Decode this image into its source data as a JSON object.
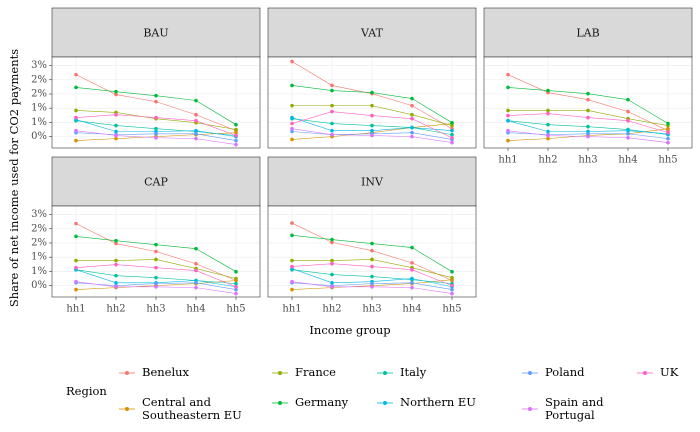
{
  "chart_data": {
    "type": "line",
    "y_label": "Share of net income used for CO2 payments",
    "x_label": "Income group",
    "legend_title": "Region",
    "categories": [
      "hh1",
      "hh2",
      "hh3",
      "hh4",
      "hh5"
    ],
    "ylim": [
      -0.4,
      2.8
    ],
    "yticks": [
      {
        "value": 0,
        "label": "0%"
      },
      {
        "value": 0.5,
        "label": "1%"
      },
      {
        "value": 1,
        "label": "1%"
      },
      {
        "value": 1.5,
        "label": "2%"
      },
      {
        "value": 2,
        "label": "2%"
      },
      {
        "value": 2.5,
        "label": "3%"
      }
    ],
    "grid": true,
    "series": [
      {
        "name": "Benelux",
        "color": "#F8766D"
      },
      {
        "name": "Central and Southeastern EU",
        "color": "#D39200"
      },
      {
        "name": "France",
        "color": "#93AA00"
      },
      {
        "name": "Germany",
        "color": "#00BA38"
      },
      {
        "name": "Italy",
        "color": "#00C19F"
      },
      {
        "name": "Northern EU",
        "color": "#00B9E3"
      },
      {
        "name": "Poland",
        "color": "#619CFF"
      },
      {
        "name": "Spain and Portugal",
        "color": "#DB72FB"
      },
      {
        "name": "UK",
        "color": "#FF61C3"
      }
    ],
    "facets": [
      {
        "title": "BAU",
        "values": [
          [
            2.18,
            1.48,
            1.23,
            0.77,
            0.21
          ],
          [
            -0.14,
            -0.07,
            0,
            0.07,
            0.14
          ],
          [
            0.92,
            0.85,
            0.63,
            0.49,
            0.25
          ],
          [
            1.73,
            1.58,
            1.44,
            1.27,
            0.42
          ],
          [
            0.56,
            0.39,
            0.28,
            0.18,
            0.04
          ],
          [
            0.6,
            0.18,
            0.18,
            0.21,
            0
          ],
          [
            0.14,
            0.07,
            0.1,
            0.1,
            -0.14
          ],
          [
            0.21,
            0.04,
            -0.04,
            -0.07,
            -0.28
          ],
          [
            0.67,
            0.77,
            0.67,
            0.56,
            0.04
          ]
        ]
      },
      {
        "title": "VAT",
        "values": [
          [
            2.64,
            1.8,
            1.51,
            1.09,
            0.28
          ],
          [
            -0.1,
            0,
            0.14,
            0.32,
            0.46
          ],
          [
            1.09,
            1.09,
            1.09,
            0.77,
            0.39
          ],
          [
            1.8,
            1.62,
            1.55,
            1.34,
            0.49
          ],
          [
            0.63,
            0.46,
            0.39,
            0.32,
            0.07
          ],
          [
            0.67,
            0.21,
            0.21,
            0.32,
            0.21
          ],
          [
            0.18,
            0.07,
            0.1,
            0.14,
            -0.1
          ],
          [
            0.28,
            0.07,
            0.04,
            0,
            -0.21
          ],
          [
            0.46,
            0.88,
            0.74,
            0.63,
            -0.04
          ]
        ]
      },
      {
        "title": "LAB",
        "values": [
          [
            2.18,
            1.55,
            1.3,
            0.88,
            0.21
          ],
          [
            -0.14,
            -0.07,
            0.04,
            0.1,
            0.28
          ],
          [
            0.92,
            0.92,
            0.92,
            0.63,
            0.39
          ],
          [
            1.73,
            1.62,
            1.51,
            1.3,
            0.46
          ],
          [
            0.56,
            0.42,
            0.35,
            0.25,
            0.07
          ],
          [
            0.56,
            0.18,
            0.18,
            0.21,
            0.1
          ],
          [
            0.14,
            0.07,
            0.1,
            0.1,
            -0.07
          ],
          [
            0.21,
            0.04,
            0,
            -0.04,
            -0.21
          ],
          [
            0.74,
            0.81,
            0.67,
            0.56,
            0.14
          ]
        ]
      },
      {
        "title": "CAP",
        "values": [
          [
            2.18,
            1.48,
            1.2,
            0.77,
            0.18
          ],
          [
            -0.14,
            -0.07,
            0,
            0.07,
            0.18
          ],
          [
            0.88,
            0.88,
            0.92,
            0.6,
            0.25
          ],
          [
            1.73,
            1.58,
            1.44,
            1.3,
            0.49
          ],
          [
            0.56,
            0.35,
            0.28,
            0.18,
            0.07
          ],
          [
            0.56,
            0.1,
            0.1,
            0.18,
            -0.04
          ],
          [
            0.1,
            0,
            0.07,
            0.1,
            -0.14
          ],
          [
            0.14,
            -0.04,
            -0.04,
            -0.07,
            -0.28
          ],
          [
            0.63,
            0.74,
            0.63,
            0.53,
            -0.04
          ]
        ]
      },
      {
        "title": "INV",
        "values": [
          [
            2.2,
            1.52,
            1.23,
            0.8,
            0.18
          ],
          [
            -0.14,
            -0.07,
            0,
            0.07,
            0.21
          ],
          [
            0.88,
            0.88,
            0.92,
            0.63,
            0.28
          ],
          [
            1.77,
            1.62,
            1.48,
            1.34,
            0.49
          ],
          [
            0.56,
            0.39,
            0.32,
            0.21,
            0.07
          ],
          [
            0.6,
            0.1,
            0.14,
            0.25,
            -0.04
          ],
          [
            0.1,
            0,
            0.07,
            0.1,
            -0.14
          ],
          [
            0.14,
            -0.04,
            -0.04,
            -0.07,
            -0.28
          ],
          [
            0.67,
            0.77,
            0.67,
            0.56,
            0
          ]
        ]
      }
    ]
  }
}
